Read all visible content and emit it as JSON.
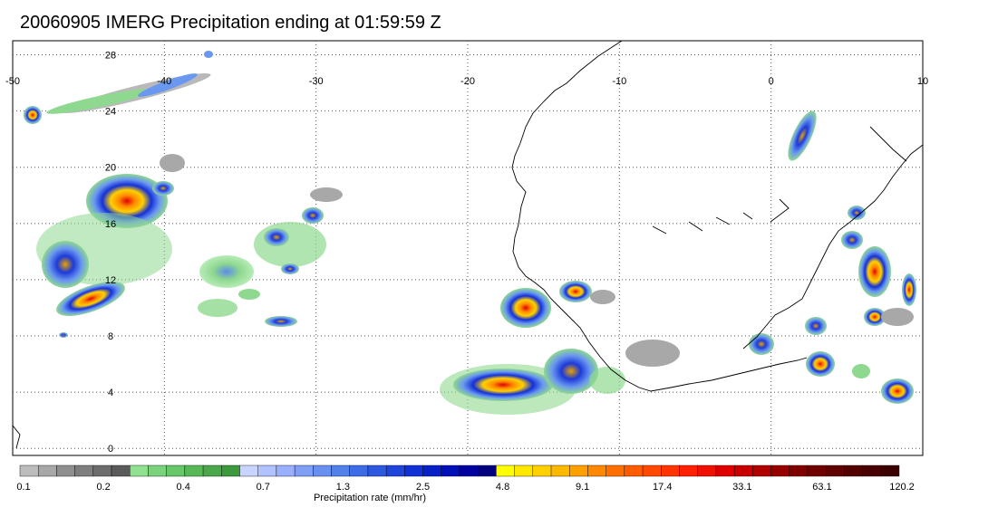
{
  "title": "20060905 IMERG Precipitation ending at 01:59:59 Z",
  "map": {
    "lon_range": [
      -50,
      10
    ],
    "lat_range": [
      -0.5,
      29
    ],
    "lon_ticks": [
      "-50",
      "-40",
      "-30",
      "-20",
      "-10",
      "0",
      "10"
    ],
    "lat_ticks": [
      "28",
      "24",
      "20",
      "16",
      "12",
      "8",
      "4",
      "0"
    ],
    "grid": "dotted"
  },
  "colorbar": {
    "label": "Precipitation rate (mm/hr)",
    "tick_labels": [
      "0.1",
      "0.2",
      "0.4",
      "0.7",
      "1.3",
      "2.5",
      "4.8",
      "9.1",
      "17.4",
      "33.1",
      "63.1",
      "120.2"
    ],
    "colors": [
      "#bcbcbc",
      "#a8a8a8",
      "#8f8f8f",
      "#7e7e7e",
      "#6c6c6c",
      "#5a5a5a",
      "#8fe08f",
      "#7ad37a",
      "#68c768",
      "#58b858",
      "#4aa84a",
      "#3d993d",
      "#c8d4ff",
      "#b0c2ff",
      "#98b0ff",
      "#80a0f8",
      "#6890f0",
      "#5080ea",
      "#3c6ce6",
      "#2c58e0",
      "#1e44dc",
      "#1030d8",
      "#0820c8",
      "#0010b8",
      "#0000a0",
      "#000080",
      "#ffff00",
      "#ffe800",
      "#ffd000",
      "#ffb800",
      "#ffa000",
      "#ff8800",
      "#ff7000",
      "#ff5c00",
      "#ff4800",
      "#ff3400",
      "#ff2000",
      "#f01000",
      "#e00000",
      "#c80000",
      "#b00000",
      "#980000",
      "#800000",
      "#700000",
      "#600000",
      "#520000",
      "#480000",
      "#3c0000"
    ]
  }
}
